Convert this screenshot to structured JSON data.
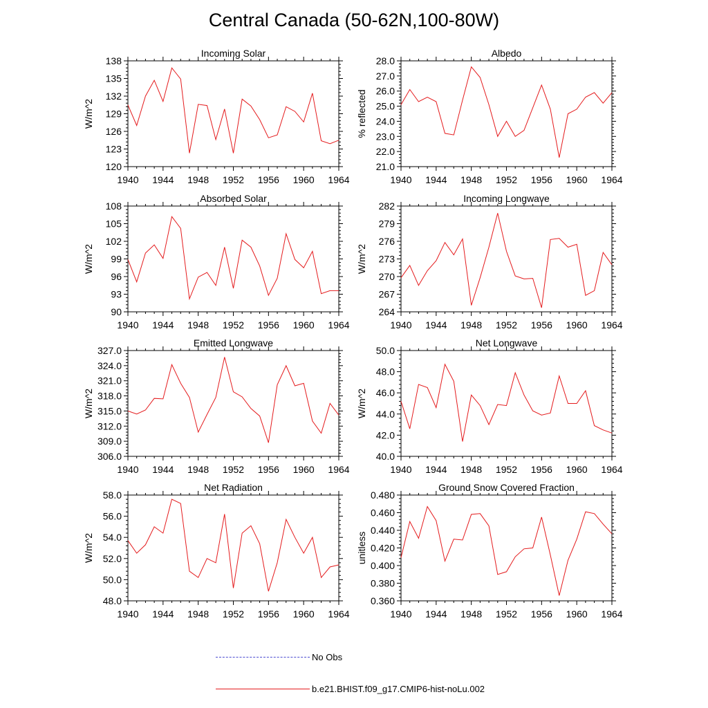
{
  "title": "Central Canada (50-62N,100-80W)",
  "legend": {
    "obs_label": "No Obs",
    "obs_color": "#4a4ad0",
    "model_label": "b.e21.BHIST.f09_g17.CMIP6-hist-noLu.002",
    "model_color": "#e41a1c"
  },
  "chart_data": [
    {
      "type": "line",
      "title": "Incoming Solar",
      "ylabel": "W/m^2",
      "x": [
        1940,
        1941,
        1942,
        1943,
        1944,
        1945,
        1946,
        1947,
        1948,
        1949,
        1950,
        1951,
        1952,
        1953,
        1954,
        1955,
        1956,
        1957,
        1958,
        1959,
        1960,
        1961,
        1962,
        1963,
        1964
      ],
      "values": [
        130.5,
        127.0,
        132.0,
        134.7,
        131.1,
        136.8,
        134.9,
        122.3,
        130.6,
        130.4,
        124.6,
        129.8,
        122.3,
        131.5,
        130.3,
        128.0,
        124.9,
        125.4,
        130.2,
        129.4,
        127.6,
        132.5,
        124.4,
        123.9,
        124.5
      ],
      "ylim": [
        120,
        138
      ],
      "yticks": [
        "120",
        "123",
        "126",
        "129",
        "132",
        "135",
        "138"
      ],
      "xlim": [
        1940,
        1964
      ],
      "xticks": [
        "1940",
        "1944",
        "1948",
        "1952",
        "1956",
        "1960",
        "1964"
      ]
    },
    {
      "type": "line",
      "title": "Albedo",
      "ylabel": "% reflected",
      "x": [
        1940,
        1941,
        1942,
        1943,
        1944,
        1945,
        1946,
        1947,
        1948,
        1949,
        1950,
        1951,
        1952,
        1953,
        1954,
        1955,
        1956,
        1957,
        1958,
        1959,
        1960,
        1961,
        1962,
        1963,
        1964
      ],
      "values": [
        25.1,
        26.1,
        25.3,
        25.6,
        25.3,
        23.2,
        23.1,
        25.4,
        27.6,
        26.9,
        25.1,
        23.0,
        24.0,
        23.0,
        23.4,
        24.9,
        26.4,
        24.8,
        21.6,
        24.5,
        24.8,
        25.6,
        25.9,
        25.2,
        25.9
      ],
      "ylim": [
        21.0,
        28.0
      ],
      "yticks": [
        "21.0",
        "22.0",
        "23.0",
        "24.0",
        "25.0",
        "26.0",
        "27.0",
        "28.0"
      ],
      "xlim": [
        1940,
        1964
      ],
      "xticks": [
        "1940",
        "1944",
        "1948",
        "1952",
        "1956",
        "1960",
        "1964"
      ]
    },
    {
      "type": "line",
      "title": "Absorbed Solar",
      "ylabel": "W/m^2",
      "x": [
        1940,
        1941,
        1942,
        1943,
        1944,
        1945,
        1946,
        1947,
        1948,
        1949,
        1950,
        1951,
        1952,
        1953,
        1954,
        1955,
        1956,
        1957,
        1958,
        1959,
        1960,
        1961,
        1962,
        1963,
        1964
      ],
      "values": [
        98.9,
        95.1,
        100.0,
        101.4,
        99.1,
        106.2,
        104.2,
        92.2,
        95.9,
        96.7,
        94.5,
        101.0,
        94.0,
        102.2,
        101.0,
        97.8,
        92.8,
        95.7,
        103.3,
        98.9,
        97.5,
        100.3,
        93.1,
        93.6,
        93.6
      ],
      "ylim": [
        90,
        108
      ],
      "yticks": [
        "90",
        "93",
        "96",
        "99",
        "102",
        "105",
        "108"
      ],
      "xlim": [
        1940,
        1964
      ],
      "xticks": [
        "1940",
        "1944",
        "1948",
        "1952",
        "1956",
        "1960",
        "1964"
      ]
    },
    {
      "type": "line",
      "title": "Incoming Longwave",
      "ylabel": "W/m^2",
      "x": [
        1940,
        1941,
        1942,
        1943,
        1944,
        1945,
        1946,
        1947,
        1948,
        1949,
        1950,
        1951,
        1952,
        1953,
        1954,
        1955,
        1956,
        1957,
        1958,
        1959,
        1960,
        1961,
        1962,
        1963,
        1964
      ],
      "values": [
        269.8,
        271.9,
        268.5,
        271.0,
        272.7,
        275.8,
        273.7,
        276.4,
        265.1,
        269.8,
        275.0,
        280.8,
        274.3,
        270.1,
        269.6,
        269.7,
        264.7,
        276.3,
        276.5,
        275.0,
        275.5,
        266.8,
        267.6,
        274.1,
        272.0
      ],
      "ylim": [
        264,
        282
      ],
      "yticks": [
        "264",
        "267",
        "270",
        "273",
        "276",
        "279",
        "282"
      ],
      "xlim": [
        1940,
        1964
      ],
      "xticks": [
        "1940",
        "1944",
        "1948",
        "1952",
        "1956",
        "1960",
        "1964"
      ]
    },
    {
      "type": "line",
      "title": "Emitted Longwave",
      "ylabel": "W/m^2",
      "x": [
        1940,
        1941,
        1942,
        1943,
        1944,
        1945,
        1946,
        1947,
        1948,
        1949,
        1950,
        1951,
        1952,
        1953,
        1954,
        1955,
        1956,
        1957,
        1958,
        1959,
        1960,
        1961,
        1962,
        1963,
        1964
      ],
      "values": [
        315.0,
        314.4,
        315.2,
        317.5,
        317.4,
        324.2,
        320.5,
        317.7,
        310.8,
        314.3,
        317.7,
        325.7,
        318.8,
        317.8,
        315.5,
        314.0,
        308.7,
        320.2,
        324.0,
        320.0,
        320.5,
        313.0,
        310.6,
        316.5,
        314.2
      ],
      "ylim": [
        306.0,
        327.0
      ],
      "yticks": [
        "306.0",
        "309.0",
        "312.0",
        "315.0",
        "318.0",
        "321.0",
        "324.0",
        "327.0"
      ],
      "xlim": [
        1940,
        1964
      ],
      "xticks": [
        "1940",
        "1944",
        "1948",
        "1952",
        "1956",
        "1960",
        "1964"
      ]
    },
    {
      "type": "line",
      "title": "Net Longwave",
      "ylabel": "W/m^2",
      "x": [
        1940,
        1941,
        1942,
        1943,
        1944,
        1945,
        1946,
        1947,
        1948,
        1949,
        1950,
        1951,
        1952,
        1953,
        1954,
        1955,
        1956,
        1957,
        1958,
        1959,
        1960,
        1961,
        1962,
        1963,
        1964
      ],
      "values": [
        45.2,
        42.6,
        46.8,
        46.5,
        44.6,
        48.7,
        47.1,
        41.4,
        45.8,
        44.8,
        43.0,
        44.9,
        44.8,
        47.9,
        45.8,
        44.3,
        43.9,
        44.1,
        47.6,
        45.0,
        45.0,
        46.2,
        42.9,
        42.5,
        42.2
      ],
      "ylim": [
        40.0,
        50.0
      ],
      "yticks": [
        "40.0",
        "42.0",
        "44.0",
        "46.0",
        "48.0",
        "50.0"
      ],
      "xlim": [
        1940,
        1964
      ],
      "xticks": [
        "1940",
        "1944",
        "1948",
        "1952",
        "1956",
        "1960",
        "1964"
      ]
    },
    {
      "type": "line",
      "title": "Net Radiation",
      "ylabel": "W/m^2",
      "x": [
        1940,
        1941,
        1942,
        1943,
        1944,
        1945,
        1946,
        1947,
        1948,
        1949,
        1950,
        1951,
        1952,
        1953,
        1954,
        1955,
        1956,
        1957,
        1958,
        1959,
        1960,
        1961,
        1962,
        1963,
        1964
      ],
      "values": [
        53.7,
        52.5,
        53.3,
        55.0,
        54.4,
        57.6,
        57.2,
        50.8,
        50.2,
        52.0,
        51.6,
        56.2,
        49.2,
        54.4,
        55.1,
        53.4,
        48.9,
        51.6,
        55.7,
        54.0,
        52.5,
        54.0,
        50.2,
        51.2,
        51.4
      ],
      "ylim": [
        48.0,
        58.0
      ],
      "yticks": [
        "48.0",
        "50.0",
        "52.0",
        "54.0",
        "56.0",
        "58.0"
      ],
      "xlim": [
        1940,
        1964
      ],
      "xticks": [
        "1940",
        "1944",
        "1948",
        "1952",
        "1956",
        "1960",
        "1964"
      ]
    },
    {
      "type": "line",
      "title": "Ground Snow Covered Fraction",
      "ylabel": "unitless",
      "x": [
        1940,
        1941,
        1942,
        1943,
        1944,
        1945,
        1946,
        1947,
        1948,
        1949,
        1950,
        1951,
        1952,
        1953,
        1954,
        1955,
        1956,
        1957,
        1958,
        1959,
        1960,
        1961,
        1962,
        1963,
        1964
      ],
      "values": [
        0.409,
        0.45,
        0.431,
        0.467,
        0.451,
        0.405,
        0.43,
        0.429,
        0.458,
        0.459,
        0.445,
        0.39,
        0.393,
        0.41,
        0.419,
        0.42,
        0.455,
        0.412,
        0.366,
        0.406,
        0.43,
        0.461,
        0.459,
        0.447,
        0.436
      ],
      "ylim": [
        0.36,
        0.48
      ],
      "yticks": [
        "0.360",
        "0.380",
        "0.400",
        "0.420",
        "0.440",
        "0.460",
        "0.480"
      ],
      "xlim": [
        1940,
        1964
      ],
      "xticks": [
        "1940",
        "1944",
        "1948",
        "1952",
        "1956",
        "1960",
        "1964"
      ]
    }
  ]
}
